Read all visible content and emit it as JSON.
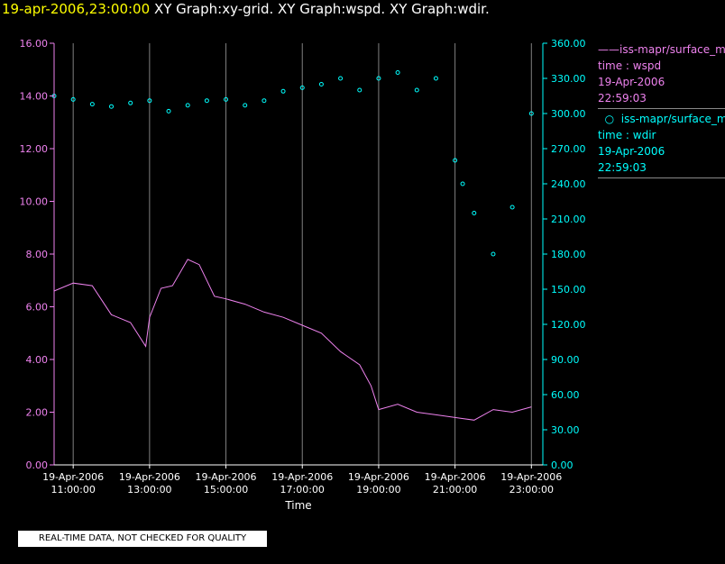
{
  "header": {
    "timestamp": "19-apr-2006,23:00:00",
    "graphs": "XY Graph:xy-grid.  XY Graph:wspd.  XY Graph:wdir."
  },
  "colors": {
    "wspd": "#ee82ee",
    "wdir": "#00ffff",
    "axis": "#ffffff",
    "grid": "#808080"
  },
  "legend": [
    {
      "name": "iss-mapr/surface_met",
      "var": "time : wspd",
      "date": "19-Apr-2006",
      "time": "22:59:03",
      "color": "#ee82ee",
      "marker": "line"
    },
    {
      "name": "iss-mapr/surface_met",
      "var": "time : wdir",
      "date": "19-Apr-2006",
      "time": "22:59:03",
      "color": "#00ffff",
      "marker": "circle"
    }
  ],
  "disclaimer": "REAL-TIME DATA, NOT CHECKED FOR QUALITY",
  "chart_data": {
    "type": "line",
    "title": "XY Graph",
    "xlabel": "Time",
    "xlim": [
      10.5,
      23.3
    ],
    "x_ticks": [
      {
        "hour": 11,
        "label": [
          "19-Apr-2006",
          "11:00:00"
        ]
      },
      {
        "hour": 13,
        "label": [
          "19-Apr-2006",
          "13:00:00"
        ]
      },
      {
        "hour": 15,
        "label": [
          "19-Apr-2006",
          "15:00:00"
        ]
      },
      {
        "hour": 17,
        "label": [
          "19-Apr-2006",
          "17:00:00"
        ]
      },
      {
        "hour": 19,
        "label": [
          "19-Apr-2006",
          "19:00:00"
        ]
      },
      {
        "hour": 21,
        "label": [
          "19-Apr-2006",
          "21:00:00"
        ]
      },
      {
        "hour": 23,
        "label": [
          "19-Apr-2006",
          "23:00:00"
        ]
      }
    ],
    "grid_x_hours": [
      11,
      13,
      15,
      17,
      19,
      21,
      23
    ],
    "left_axis": {
      "ylim": [
        0,
        16
      ],
      "ticks": [
        "0.00",
        "2.00",
        "4.00",
        "6.00",
        "8.00",
        "10.00",
        "12.00",
        "14.00",
        "16.00"
      ],
      "color": "#ee82ee"
    },
    "right_axis": {
      "ylim": [
        0,
        360
      ],
      "ticks": [
        "0.00",
        "30.00",
        "60.00",
        "90.00",
        "120.00",
        "150.00",
        "180.00",
        "210.00",
        "240.00",
        "270.00",
        "300.00",
        "330.00",
        "360.00"
      ],
      "color": "#00ffff"
    },
    "series": [
      {
        "name": "wspd",
        "axis": "left",
        "style": "line",
        "x": [
          10.5,
          11.0,
          11.5,
          12.0,
          12.5,
          12.9,
          13.0,
          13.3,
          13.6,
          14.0,
          14.3,
          14.7,
          15.0,
          15.5,
          16.0,
          16.5,
          17.0,
          17.5,
          18.0,
          18.5,
          18.8,
          19.0,
          19.5,
          20.0,
          20.5,
          21.0,
          21.5,
          22.0,
          22.5,
          23.0
        ],
        "values": [
          6.6,
          6.9,
          6.8,
          5.7,
          5.4,
          4.5,
          5.6,
          6.7,
          6.8,
          7.8,
          7.6,
          6.4,
          6.3,
          6.1,
          5.8,
          5.6,
          5.3,
          5.0,
          4.3,
          3.8,
          3.0,
          2.1,
          2.3,
          2.0,
          1.9,
          1.8,
          1.7,
          2.1,
          2.0,
          2.2
        ]
      },
      {
        "name": "wdir",
        "axis": "right",
        "style": "markers",
        "x": [
          10.5,
          11.0,
          11.5,
          12.0,
          12.5,
          13.0,
          13.5,
          14.0,
          14.5,
          15.0,
          15.5,
          16.0,
          16.5,
          17.0,
          17.5,
          18.0,
          18.5,
          19.0,
          19.5,
          20.0,
          20.5,
          21.0,
          21.2,
          21.5,
          22.0,
          22.5,
          23.0
        ],
        "values": [
          315,
          312,
          308,
          306,
          309,
          311,
          302,
          307,
          311,
          312,
          307,
          311,
          319,
          322,
          325,
          330,
          320,
          330,
          335,
          320,
          330,
          260,
          240,
          215,
          180,
          220,
          300
        ]
      }
    ]
  }
}
